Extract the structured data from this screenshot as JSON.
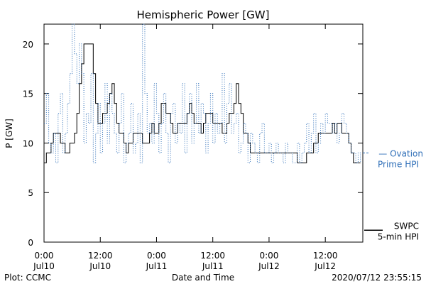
{
  "chart_data": {
    "type": "line",
    "title": "Hemispheric Power [GW]",
    "ylabel": "P [GW]",
    "xlabel": "Date and Time",
    "ylim": [
      0,
      22
    ],
    "xlim_hours": [
      0,
      68
    ],
    "yticks": [
      0,
      5,
      10,
      15,
      20
    ],
    "xticks": [
      {
        "hour": 0,
        "time": "0:00",
        "date": "Jul10"
      },
      {
        "hour": 12,
        "time": "12:00",
        "date": "Jul10"
      },
      {
        "hour": 24,
        "time": "0:00",
        "date": "Jul11"
      },
      {
        "hour": 36,
        "time": "12:00",
        "date": "Jul11"
      },
      {
        "hour": 48,
        "time": "0:00",
        "date": "Jul12"
      },
      {
        "hour": 60,
        "time": "12:00",
        "date": "Jul12"
      }
    ],
    "grid": false,
    "series": [
      {
        "name": "SWPC 5-min HPI",
        "label_lines": [
          "SWPC",
          "5-min HPI"
        ],
        "color": "#000000",
        "style": "solid",
        "x": [
          0,
          0.5,
          1,
          1.5,
          2,
          2.5,
          3,
          3.5,
          4,
          4.5,
          5,
          5.5,
          6,
          6.5,
          7,
          7.5,
          8,
          8.5,
          9,
          9.5,
          10,
          10.5,
          11,
          11.5,
          12,
          12.5,
          13,
          13.5,
          14,
          14.5,
          15,
          15.5,
          16,
          16.5,
          17,
          17.5,
          18,
          18.5,
          19,
          19.5,
          20,
          20.5,
          21,
          21.5,
          22,
          22.5,
          23,
          23.5,
          24,
          24.5,
          25,
          25.5,
          26,
          26.5,
          27,
          27.5,
          28,
          28.5,
          29,
          29.5,
          30,
          30.5,
          31,
          31.5,
          32,
          32.5,
          33,
          33.5,
          34,
          34.5,
          35,
          35.5,
          36,
          36.5,
          37,
          37.5,
          38,
          38.5,
          39,
          39.5,
          40,
          40.5,
          41,
          41.5,
          42,
          42.5,
          43,
          43.5,
          44,
          44.5,
          45,
          45.5,
          46,
          46.5,
          47,
          47.5,
          48,
          48.5,
          49,
          49.5,
          50,
          50.5,
          51,
          51.5,
          52,
          52.5,
          53,
          53.5,
          54,
          54.5,
          55,
          55.5,
          56,
          56.5,
          57,
          57.5,
          58,
          58.5,
          59,
          59.5,
          60,
          60.5,
          61,
          61.5,
          62,
          62.5,
          63,
          63.5,
          64,
          64.5,
          65,
          65.5,
          66,
          66.5,
          67,
          67.5
        ],
        "y": [
          8,
          9,
          9,
          10,
          11,
          11,
          11,
          10,
          10,
          9,
          9,
          10,
          10,
          11,
          13,
          16,
          18,
          20,
          20,
          20,
          20,
          17,
          14,
          12,
          12,
          13,
          13,
          14,
          15,
          16,
          14,
          12,
          11,
          11,
          10,
          9,
          10,
          10,
          11,
          11,
          11,
          11,
          10,
          10,
          10,
          11,
          12,
          11,
          11,
          12,
          14,
          14,
          13,
          13,
          12,
          11,
          11,
          12,
          12,
          12,
          12,
          13,
          14,
          13,
          12,
          12,
          12,
          11,
          12,
          13,
          13,
          13,
          12,
          12,
          12,
          12,
          11,
          11,
          12,
          13,
          13,
          14,
          16,
          14,
          13,
          11,
          11,
          10,
          9,
          9,
          9,
          9,
          9,
          9,
          9,
          9,
          9,
          9,
          9,
          9,
          9,
          9,
          9,
          9,
          9,
          9,
          9,
          9,
          8,
          8,
          8,
          8,
          9,
          9,
          9,
          10,
          10,
          11,
          11,
          11,
          11,
          11,
          11,
          12,
          11,
          12,
          12,
          11,
          11,
          11,
          10,
          9,
          8,
          8,
          8,
          8
        ]
      },
      {
        "name": "Ovation Prime HPI",
        "label_lines": [
          "Ovation",
          "Prime HPI"
        ],
        "color": "#2f6fb8",
        "style": "dotted",
        "x": [
          0,
          0.5,
          1,
          1.5,
          2,
          2.5,
          3,
          3.5,
          4,
          4.5,
          5,
          5.5,
          6,
          6.5,
          7,
          7.5,
          8,
          8.5,
          9,
          9.5,
          10,
          10.5,
          11,
          11.5,
          12,
          12.5,
          13,
          13.5,
          14,
          14.5,
          15,
          15.5,
          16,
          16.5,
          17,
          17.5,
          18,
          18.5,
          19,
          19.5,
          20,
          20.5,
          21,
          21.5,
          22,
          22.5,
          23,
          23.5,
          24,
          24.5,
          25,
          25.5,
          26,
          26.5,
          27,
          27.5,
          28,
          28.5,
          29,
          29.5,
          30,
          30.5,
          31,
          31.5,
          32,
          32.5,
          33,
          33.5,
          34,
          34.5,
          35,
          35.5,
          36,
          36.5,
          37,
          37.5,
          38,
          38.5,
          39,
          39.5,
          40,
          40.5,
          41,
          41.5,
          42,
          42.5,
          43,
          43.5,
          44,
          44.5,
          45,
          45.5,
          46,
          46.5,
          47,
          47.5,
          48,
          48.5,
          49,
          49.5,
          50,
          50.5,
          51,
          51.5,
          52,
          52.5,
          53,
          53.5,
          54,
          54.5,
          55,
          55.5,
          56,
          56.5,
          57,
          57.5,
          58,
          58.5,
          59,
          59.5,
          60,
          60.5,
          61,
          61.5,
          62,
          62.5,
          63,
          63.5,
          64,
          64.5,
          65,
          65.5,
          66,
          66.5,
          67,
          67.5
        ],
        "y": [
          12,
          15,
          10,
          9,
          11,
          8,
          13,
          15,
          9,
          11,
          14,
          17,
          22,
          19,
          16,
          20,
          17,
          10,
          13,
          12,
          17,
          8,
          11,
          14,
          9,
          12,
          16,
          10,
          15,
          13,
          11,
          9,
          12,
          15,
          8,
          10,
          11,
          14,
          9,
          10,
          13,
          8,
          22,
          15,
          11,
          12,
          10,
          16,
          13,
          9,
          12,
          15,
          11,
          8,
          13,
          14,
          10,
          12,
          11,
          16,
          9,
          13,
          15,
          10,
          12,
          16,
          11,
          14,
          13,
          9,
          12,
          15,
          10,
          13,
          11,
          12,
          17,
          10,
          14,
          16,
          11,
          12,
          13,
          9,
          10,
          12,
          11,
          8,
          11,
          10,
          9,
          8,
          11,
          12,
          9,
          9,
          10,
          8,
          9,
          10,
          9,
          9,
          8,
          10,
          9,
          9,
          8,
          8,
          10,
          8,
          9,
          10,
          12,
          9,
          11,
          13,
          9,
          10,
          12,
          11,
          13,
          12,
          12,
          11,
          12,
          10,
          11,
          13,
          12,
          11,
          10,
          9,
          9,
          8,
          9,
          8
        ]
      }
    ]
  },
  "footer": {
    "plot_label": "Plot: CCMC",
    "axis_label": "Date and Time",
    "timestamp": "2020/07/12 23:55:15"
  }
}
